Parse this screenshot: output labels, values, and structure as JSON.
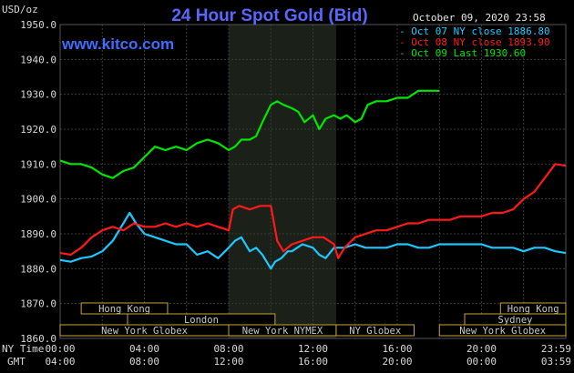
{
  "header": {
    "unit": "USD/oz",
    "title": "24 Hour Spot Gold (Bid)",
    "timestamp": "October 09, 2020 23:58",
    "site": "www.kitco.com"
  },
  "chart_data": {
    "type": "line",
    "title": "24 Hour Spot Gold (Bid)",
    "ylabel": "USD/oz",
    "ylim": [
      1860,
      1950
    ],
    "yticks": [
      "1950.0",
      "1940.0",
      "1930.0",
      "1920.0",
      "1910.0",
      "1900.0",
      "1890.0",
      "1880.0",
      "1870.0",
      "1860.0"
    ],
    "xlim": [
      0,
      24
    ],
    "x_ny_ticks": [
      "00:00",
      "04:00",
      "08:00",
      "12:00",
      "16:00",
      "20:00",
      "23:59"
    ],
    "x_gmt_ticks": [
      "04:00",
      "08:00",
      "12:00",
      "16:00",
      "20:00",
      "00:00",
      "03:59"
    ],
    "x_ny_label": "NY Time",
    "x_gmt_label": "GMT",
    "legend_position": "top-right",
    "series": [
      {
        "name": "Oct 07 NY close 1886.80",
        "color": "#1ec8ff",
        "x": [
          0,
          0.5,
          1,
          1.5,
          2,
          2.5,
          3,
          3.3,
          3.6,
          4,
          4.5,
          5,
          5.5,
          6,
          6.5,
          7,
          7.5,
          8,
          8.3,
          8.6,
          9,
          9.3,
          9.6,
          10,
          10.2,
          10.5,
          10.8,
          11,
          11.5,
          12,
          12.3,
          12.6,
          13,
          13.5,
          14,
          14.5,
          15,
          15.5,
          16,
          16.5,
          17,
          17.5,
          18,
          18.5,
          19,
          19.5,
          20,
          20.5,
          21,
          21.5,
          22,
          22.5,
          23,
          23.5,
          24
        ],
        "y": [
          1882.5,
          1882,
          1883,
          1883.5,
          1885,
          1888,
          1893,
          1896,
          1893,
          1890,
          1889,
          1888,
          1887,
          1887,
          1884,
          1885,
          1883,
          1886,
          1888,
          1889,
          1885,
          1886,
          1884,
          1880,
          1882,
          1883,
          1885,
          1885,
          1887,
          1886,
          1884,
          1883,
          1886,
          1886,
          1887,
          1886,
          1886,
          1886,
          1887,
          1887,
          1886,
          1886,
          1887,
          1887,
          1887,
          1887,
          1887,
          1886,
          1886,
          1886,
          1885,
          1886,
          1886,
          1885,
          1884.5
        ]
      },
      {
        "name": "Oct 08 NY close 1893.90",
        "color": "#ff1a1a",
        "x": [
          0,
          0.5,
          1,
          1.5,
          2,
          2.5,
          3,
          3.5,
          4,
          4.5,
          5,
          5.5,
          6,
          6.5,
          7,
          7.5,
          8,
          8.2,
          8.5,
          9,
          9.5,
          10,
          10.3,
          10.6,
          11,
          11.5,
          12,
          12.5,
          13,
          13.2,
          13.5,
          14,
          14.5,
          15,
          15.5,
          16,
          16.5,
          17,
          17.5,
          18,
          18.5,
          19,
          19.5,
          20,
          20.5,
          21,
          21.5,
          22,
          22.5,
          23,
          23.5,
          24
        ],
        "y": [
          1884.5,
          1884,
          1886,
          1889,
          1891,
          1892,
          1891,
          1893,
          1892,
          1892,
          1893,
          1892,
          1893,
          1892,
          1893,
          1892,
          1891,
          1897,
          1898,
          1897,
          1898,
          1898,
          1888,
          1885,
          1887,
          1888,
          1889,
          1889,
          1887,
          1883,
          1886,
          1889,
          1890,
          1891,
          1891,
          1892,
          1893,
          1893,
          1894,
          1894,
          1894,
          1895,
          1895,
          1895,
          1896,
          1896,
          1897,
          1900,
          1902,
          1906,
          1910,
          1909.5
        ]
      },
      {
        "name": "Oct 09 Last 1930.60",
        "color": "#00e600",
        "x": [
          0,
          0.5,
          1,
          1.5,
          2,
          2.5,
          3,
          3.5,
          4,
          4.5,
          5,
          5.5,
          6,
          6.5,
          7,
          7.5,
          8,
          8.3,
          8.6,
          9,
          9.3,
          9.6,
          10,
          10.3,
          10.6,
          11,
          11.3,
          11.6,
          12,
          12.3,
          12.6,
          13,
          13.3,
          13.6,
          14,
          14.3,
          14.6,
          15,
          15.5,
          16,
          16.5,
          17,
          17.5,
          18
        ],
        "y": [
          1911,
          1910,
          1910,
          1909,
          1907,
          1906,
          1908,
          1909,
          1912,
          1915,
          1914,
          1915,
          1914,
          1916,
          1917,
          1916,
          1914,
          1915,
          1917,
          1917,
          1918,
          1922,
          1927,
          1928,
          1927,
          1926,
          1925,
          1922,
          1924,
          1920,
          1923,
          1924,
          1923,
          1924,
          1922,
          1923,
          1927,
          1928,
          1928,
          1929,
          1929,
          1931,
          1931,
          1931
        ]
      }
    ]
  },
  "markets": [
    {
      "label": "Hong Kong",
      "row": 0,
      "start": 1.0,
      "end": 5.1
    },
    {
      "label": "London",
      "row": 1,
      "start": 3.2,
      "end": 10.2
    },
    {
      "label": "New York Globex",
      "row": 2,
      "start": 0,
      "end": 8.0
    },
    {
      "label": "New York NYMEX",
      "row": 2,
      "start": 8.0,
      "end": 13.1
    },
    {
      "label": "NY Globex",
      "row": 2,
      "start": 13.1,
      "end": 16.8
    },
    {
      "label": "Hong Kong",
      "row": 0,
      "start": 20.9,
      "end": 24
    },
    {
      "label": "Sydney",
      "row": 1,
      "start": 19.2,
      "end": 24
    },
    {
      "label": "New York Globex",
      "row": 2,
      "start": 18.0,
      "end": 24
    }
  ],
  "shading": {
    "start": 8.0,
    "end": 13.1
  },
  "colors": {
    "grid": "#3a3a3a",
    "shade": "#1b2118",
    "axis_text": "#d8d8d8",
    "box_border": "#c8a33a"
  }
}
